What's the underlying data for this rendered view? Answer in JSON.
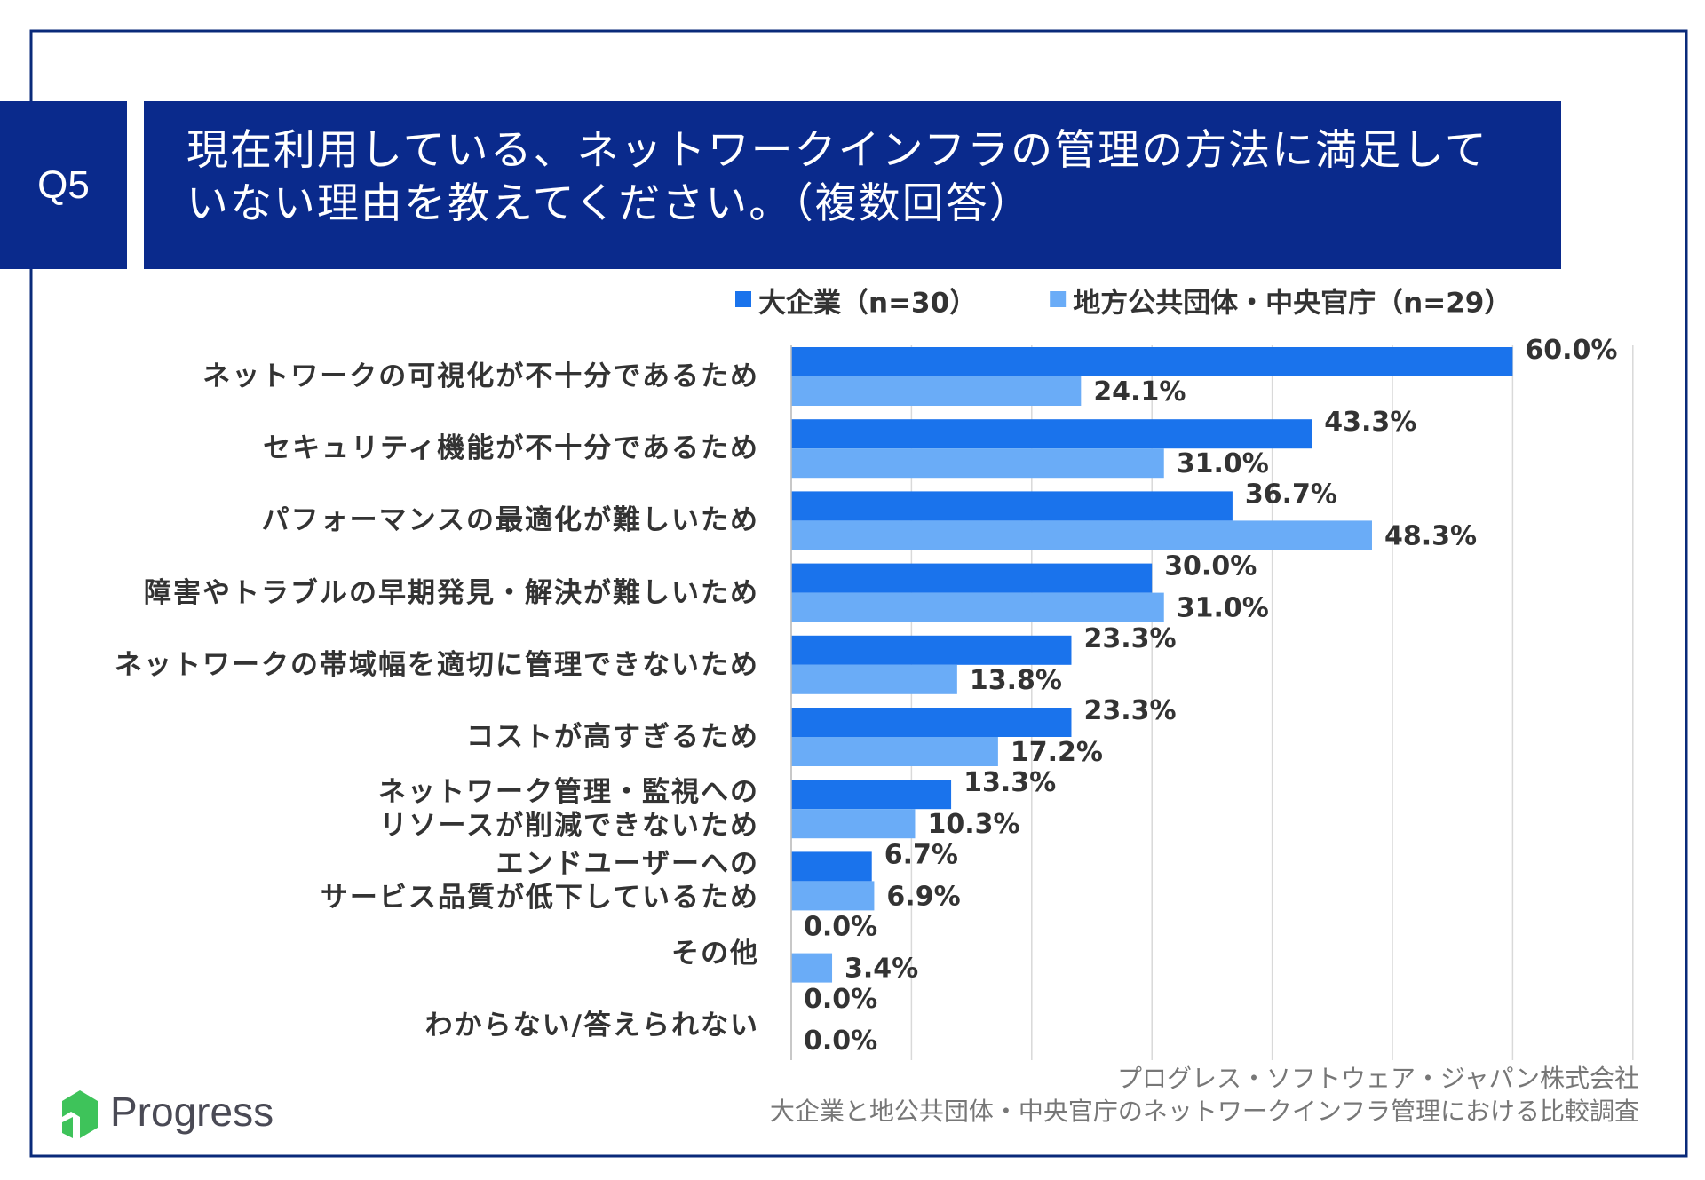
{
  "header": {
    "badge": "Q5",
    "title": "現在利用している、ネットワークインフラの管理の方法に満足して\nいない理由を教えてください。（複数回答）"
  },
  "chart_data": {
    "type": "bar",
    "orientation": "horizontal",
    "categories": [
      "ネットワークの可視化が不十分であるため",
      "セキュリティ機能が不十分であるため",
      "パフォーマンスの最適化が難しいため",
      "障害やトラブルの早期発見・解決が難しいため",
      "ネットワークの帯域幅を適切に管理できないため",
      "コストが高すぎるため",
      "ネットワーク管理・監視への\nリソースが削減できないため",
      "エンドユーザーへの\nサービス品質が低下しているため",
      "その他",
      "わからない/答えられない"
    ],
    "series": [
      {
        "name": "大企業（n=30）",
        "color": "#1a73ec",
        "values": [
          60.0,
          43.3,
          36.7,
          30.0,
          23.3,
          23.3,
          13.3,
          6.7,
          0.0,
          0.0
        ],
        "value_labels": [
          "60.0%",
          "43.3%",
          "36.7%",
          "30.0%",
          "23.3%",
          "23.3%",
          "13.3%",
          "6.7%",
          "0.0%",
          "0.0%"
        ]
      },
      {
        "name": "地方公共団体・中央官庁（n=29）",
        "color": "#6aacf7",
        "values": [
          24.1,
          31.0,
          48.3,
          31.0,
          13.8,
          17.2,
          10.3,
          6.9,
          3.4,
          0.0
        ],
        "value_labels": [
          "24.1%",
          "31.0%",
          "48.3%",
          "31.0%",
          "13.8%",
          "17.2%",
          "10.3%",
          "6.9%",
          "3.4%",
          "0.0%"
        ]
      }
    ],
    "xlim": [
      0,
      70
    ],
    "gridlines": [
      0,
      10,
      20,
      30,
      40,
      50,
      60,
      70
    ],
    "grid": true
  },
  "footer": {
    "source": [
      "プログレス・ソフトウェア・ジャパン株式会社",
      "大企業と地公共団体・中央官庁のネットワークインフラ管理における比較調査"
    ],
    "logo": "Progress"
  }
}
